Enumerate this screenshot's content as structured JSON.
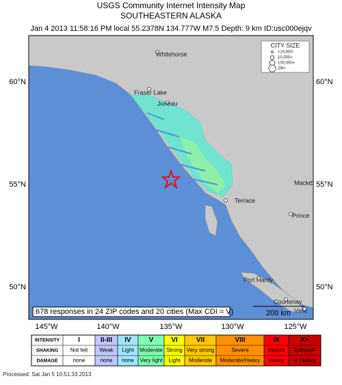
{
  "header": {
    "title": "USGS Community Internet Intensity Map",
    "subtitle": "SOUTHEASTERN ALASKA",
    "details": "Jan 4 2013 11:58:16 PM local 55.2378N 134.777W M7.5 Depth: 9 km ID:usc000ejqv"
  },
  "map": {
    "lat_labels": [
      "60°N",
      "55°N",
      "50°N"
    ],
    "lon_labels": [
      "145°W",
      "140°W",
      "135°W",
      "130°W",
      "125°W"
    ],
    "cities": [
      "Whitehorse",
      "Fraser Lake",
      "Juneau",
      "Terrace",
      "Prince",
      "Macke",
      "Port Hardy",
      "Courtenay",
      "Vanc"
    ],
    "city_size_legend": {
      "title": "CITY SIZE",
      "items": [
        "<10,000",
        "10,000+",
        "100,000+",
        "2M+"
      ]
    },
    "scale_label": "200 km",
    "summary": "678 responses in 24 ZIP codes and 20 cities (Max CDI = V)"
  },
  "legend_table": {
    "row_headers": [
      "INTENSITY",
      "SHAKING",
      "DAMAGE"
    ],
    "intensity": [
      "I",
      "II-III",
      "IV",
      "V",
      "VI",
      "VII",
      "VIII",
      "IX",
      "X+"
    ],
    "shaking": [
      "Not felt",
      "Weak",
      "Light",
      "Moderate",
      "Strong",
      "Very strong",
      "Severe",
      "Violent",
      "Extreme"
    ],
    "damage": [
      "none",
      "none",
      "none",
      "Very light",
      "Light",
      "Moderate",
      "Moderate/Heavy",
      "Heavy",
      "V. Heavy"
    ],
    "colors": [
      "#ffffff",
      "#bfc9ff",
      "#a0e6ff",
      "#80ffb0",
      "#ffff00",
      "#ffc800",
      "#ff9100",
      "#ff0000",
      "#c80000"
    ]
  },
  "footer": "Processed: Sat Jan  5 10:51:33 2013"
}
